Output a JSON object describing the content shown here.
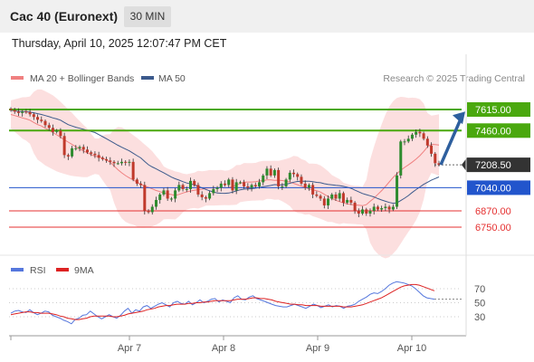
{
  "header": {
    "symbol": "Cac 40 (Euronext)",
    "timeframe": "30 MIN"
  },
  "datetime": "Thursday, April 10, 2025 12:07:47 PM CET",
  "colors": {
    "up": "#2e8b2e",
    "down": "#c0392b",
    "resistance": "#4aa80e",
    "support": "#2255cc",
    "level_red": "#e53030",
    "bollinger_fill": "#fbd4d4",
    "ma20": "#f08080",
    "ma50": "#3c5a8c",
    "rsi": "#5577dd",
    "rsi_ma": "#dd2222",
    "arrow": "#2e5f9e",
    "last_price_bg": "#333333"
  },
  "chart_data": [
    {
      "type": "candlestick",
      "legend": [
        {
          "name": "MA 20 + Bollinger Bands",
          "color": "#f08080"
        },
        {
          "name": "MA 50",
          "color": "#3c5a8c"
        }
      ],
      "credit": "Research © 2025 Trading Central",
      "x_ticks": [
        "Apr 7",
        "Apr 8",
        "Apr 9",
        "Apr 10"
      ],
      "ylim": [
        6620,
        7720
      ],
      "levels": [
        {
          "label": "7615.00",
          "value": 7615,
          "kind": "resistance"
        },
        {
          "label": "7460.00",
          "value": 7460,
          "kind": "resistance"
        },
        {
          "label": "7208.50",
          "value": 7208.5,
          "kind": "last"
        },
        {
          "label": "7040.00",
          "value": 7040,
          "kind": "support"
        },
        {
          "label": "6870.00",
          "value": 6870,
          "kind": "red"
        },
        {
          "label": "6750.00",
          "value": 6750,
          "kind": "red"
        }
      ],
      "candles_approx_close": [
        7610,
        7600,
        7590,
        7600,
        7595,
        7580,
        7560,
        7540,
        7530,
        7500,
        7480,
        7450,
        7460,
        7420,
        7280,
        7270,
        7330,
        7330,
        7340,
        7320,
        7300,
        7290,
        7280,
        7260,
        7250,
        7240,
        7230,
        7220,
        7220,
        7230,
        7225,
        7230,
        7100,
        7070,
        7060,
        6870,
        6860,
        6900,
        6950,
        6990,
        7020,
        6960,
        6960,
        7020,
        7060,
        7030,
        7030,
        7090,
        7060,
        6990,
        6970,
        6960,
        7000,
        7030,
        7040,
        7070,
        7060,
        7100,
        7020,
        7080,
        7080,
        7050,
        7040,
        7060,
        7050,
        7080,
        7130,
        7180,
        7130,
        7170,
        7050,
        7050,
        7100,
        7150,
        7140,
        7120,
        7070,
        7040,
        7060,
        6990,
        6980,
        6960,
        6910,
        6960,
        6990,
        6960,
        7000,
        6930,
        6950,
        6930,
        6870,
        6850,
        6880,
        6850,
        6870,
        6900,
        6880,
        6890,
        6900,
        6880,
        6900,
        7130,
        7380,
        7380,
        7400,
        7430,
        7450,
        7440,
        7400,
        7350,
        7290,
        7220,
        7208.5
      ]
    },
    {
      "type": "line",
      "legend": [
        {
          "name": "RSI",
          "color": "#5577dd"
        },
        {
          "name": "9MA",
          "color": "#dd2222"
        }
      ],
      "ylim": [
        10,
        90
      ],
      "y_ticks": [
        "70",
        "50",
        "30"
      ],
      "rsi_approx": [
        35,
        38,
        39,
        37,
        36,
        40,
        36,
        33,
        35,
        38,
        37,
        32,
        30,
        28,
        25,
        23,
        20,
        26,
        28,
        32,
        33,
        38,
        34,
        30,
        27,
        30,
        33,
        30,
        28,
        32,
        38,
        42,
        35,
        40,
        38,
        44,
        46,
        42,
        45,
        48,
        50,
        47,
        44,
        50,
        52,
        49,
        48,
        52,
        47,
        50,
        54,
        50,
        52,
        55,
        56,
        51,
        54,
        52,
        50,
        57,
        60,
        55,
        54,
        58,
        60,
        56,
        54,
        52,
        50,
        48,
        46,
        45,
        44,
        44,
        46,
        48,
        46,
        44,
        42,
        45,
        48,
        46,
        43,
        45,
        47,
        44,
        46,
        45,
        42,
        45,
        46,
        48,
        52,
        55,
        58,
        62,
        64,
        63,
        66,
        70,
        75,
        78,
        80,
        79,
        78,
        76,
        74,
        70,
        65,
        60,
        57,
        56,
        55
      ],
      "ma_approx": [
        33,
        34,
        35,
        36,
        37,
        37,
        36,
        36,
        35,
        35,
        35,
        34,
        33,
        31,
        30,
        28,
        27,
        26,
        26,
        27,
        28,
        30,
        31,
        31,
        31,
        31,
        31,
        30,
        30,
        31,
        32,
        34,
        35,
        36,
        37,
        38,
        40,
        41,
        42,
        44,
        45,
        46,
        46,
        47,
        48,
        48,
        48,
        49,
        49,
        50,
        50,
        51,
        51,
        52,
        53,
        53,
        53,
        53,
        53,
        54,
        55,
        55,
        55,
        56,
        57,
        57,
        56,
        56,
        55,
        54,
        52,
        51,
        50,
        49,
        48,
        48,
        47,
        47,
        46,
        46,
        46,
        46,
        45,
        45,
        45,
        45,
        45,
        45,
        44,
        44,
        44,
        45,
        46,
        47,
        49,
        51,
        53,
        55,
        57,
        60,
        63,
        66,
        69,
        72,
        74,
        75,
        76,
        76,
        75,
        73,
        71,
        69,
        67
      ]
    }
  ]
}
